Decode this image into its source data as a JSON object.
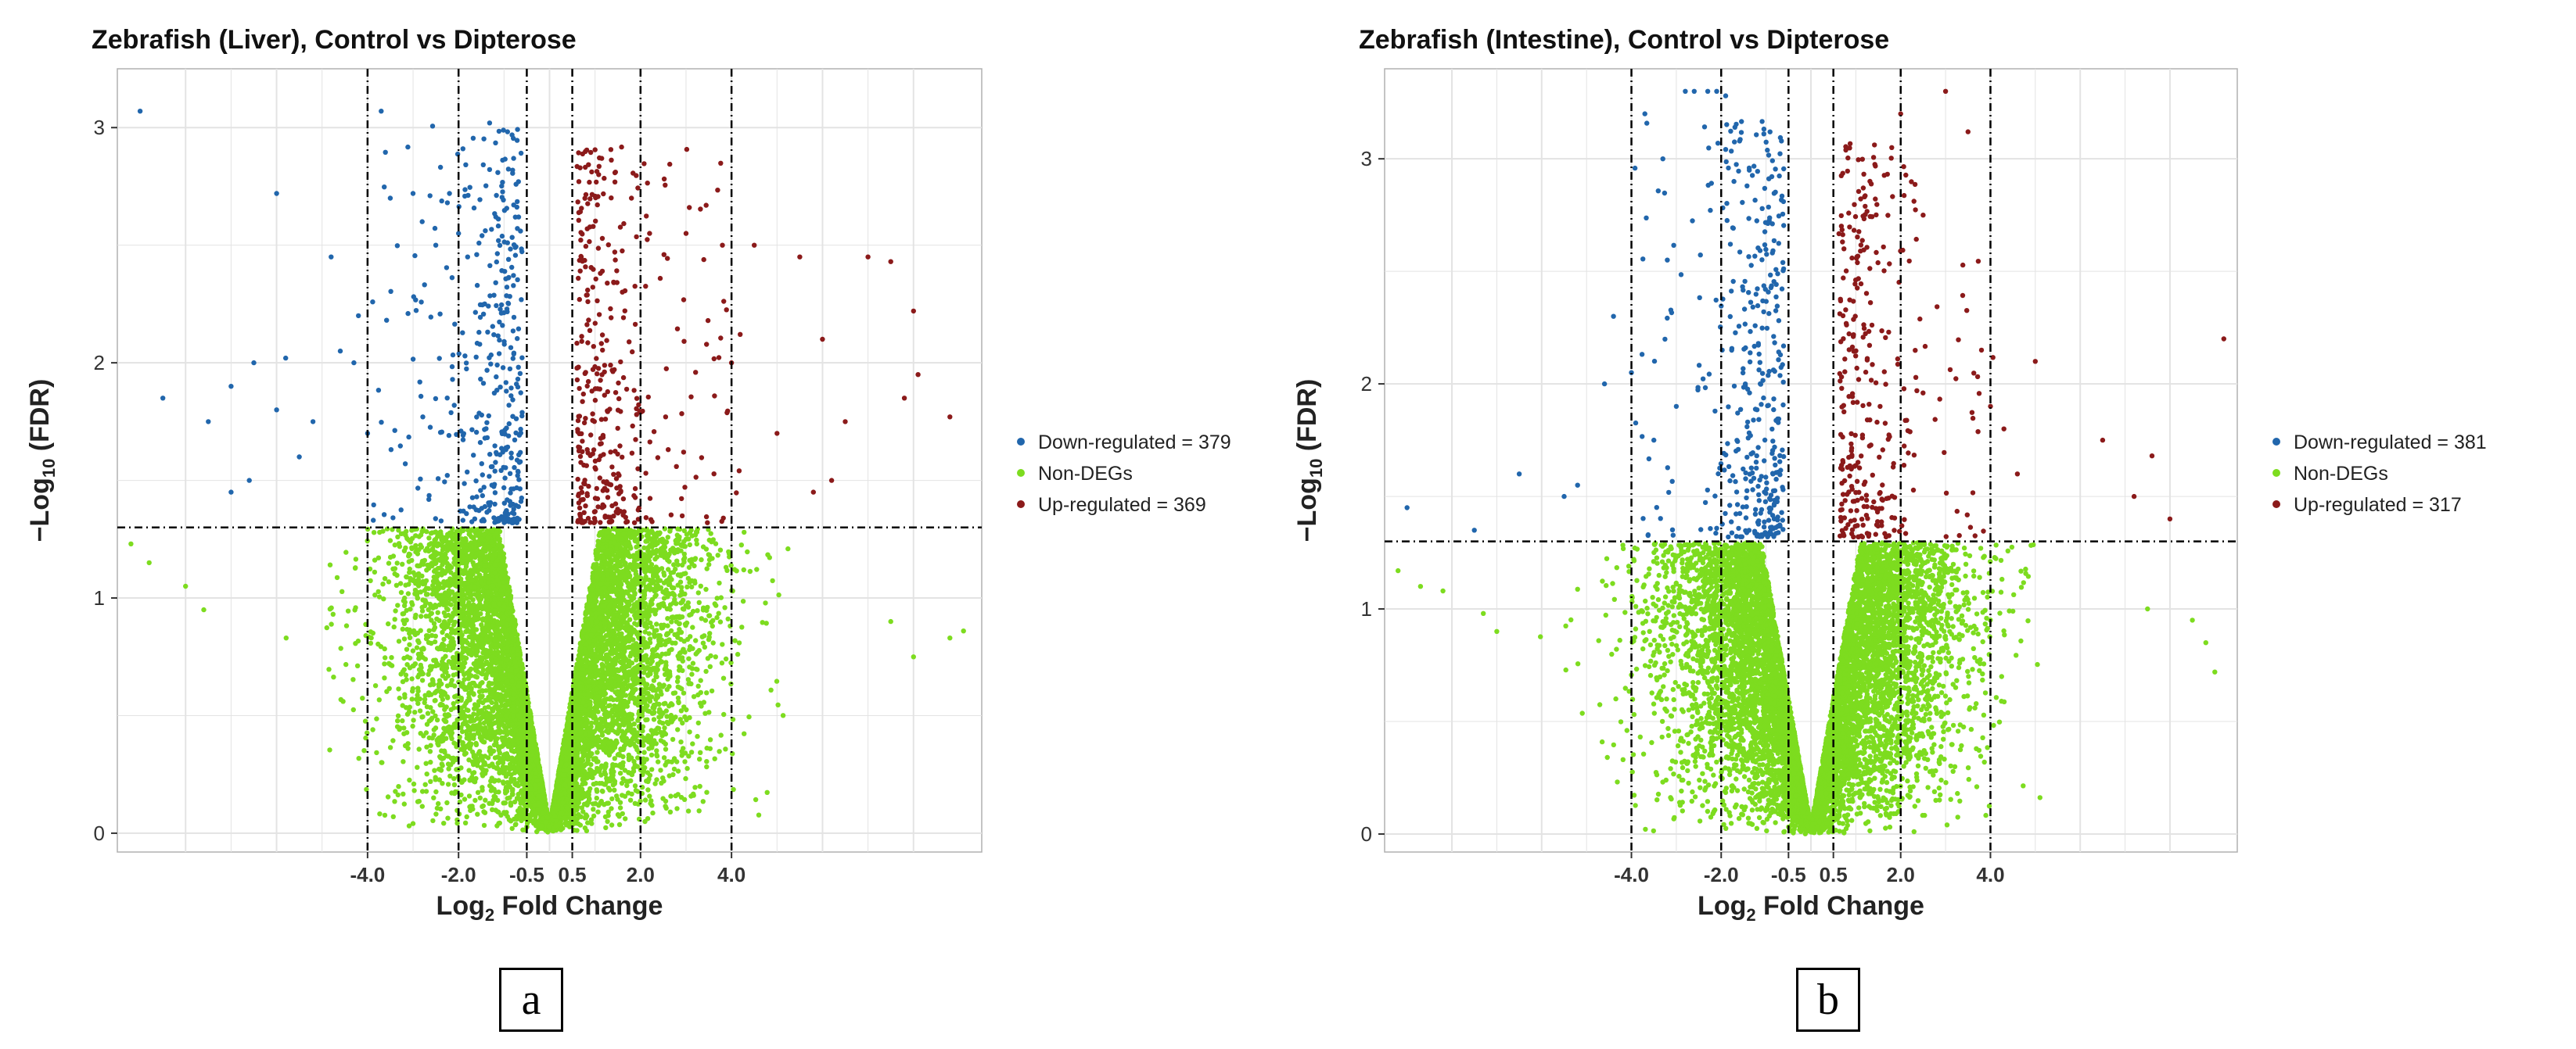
{
  "colors": {
    "down": "#2166ac",
    "non": "#7ddc1f",
    "up": "#8b1a1a",
    "grid": "#e3e3e3",
    "panel_border": "#b0b0b0"
  },
  "panels": [
    {
      "label": "a",
      "chart_data": {
        "type": "scatter",
        "title": "Zebrafish (Liver), Control vs Dipterose",
        "xlabel_main": "Log",
        "xlabel_sub": "2",
        "xlabel_tail": " Fold Change",
        "ylabel_pre": "−Log",
        "ylabel_sub": "10",
        "ylabel_tail": " (FDR)",
        "xlim": [
          -9.5,
          9.5
        ],
        "ylim": [
          -0.08,
          3.25
        ],
        "x_ticks": [
          -4,
          -2,
          -0.5,
          0.5,
          2,
          4
        ],
        "x_tick_labels": [
          "-4.0",
          "-2.0",
          "-0.5",
          "0.5",
          "2.0",
          "4.0"
        ],
        "y_ticks": [
          0,
          1,
          2,
          3
        ],
        "y_tick_labels": [
          "0",
          "1",
          "2",
          "3"
        ],
        "fdr_threshold": 1.3,
        "legend": [
          {
            "key": "down",
            "label": "Down-regulated = 379",
            "count": 379
          },
          {
            "key": "non",
            "label": "Non-DEGs"
          },
          {
            "key": "up",
            "label": "Up-regulated = 369",
            "count": 369
          }
        ],
        "series": [
          {
            "name": "Down-regulated",
            "points": [
              [
                -9.0,
                3.07
              ],
              [
                -8.5,
                1.85
              ],
              [
                -7.5,
                1.75
              ],
              [
                -7.0,
                1.9
              ],
              [
                -6.5,
                2.0
              ],
              [
                -6.0,
                1.8
              ],
              [
                -5.8,
                2.02
              ],
              [
                -5.5,
                1.6
              ],
              [
                -5.2,
                1.75
              ],
              [
                -4.8,
                2.45
              ],
              [
                -4.6,
                2.05
              ],
              [
                -4.3,
                2.0
              ],
              [
                -6.0,
                2.72
              ],
              [
                -3.7,
                3.07
              ],
              [
                -3.5,
                2.7
              ],
              [
                -3.0,
                2.72
              ],
              [
                -2.8,
                2.6
              ],
              [
                -2.5,
                2.5
              ],
              [
                -2.2,
                2.72
              ],
              [
                -2.0,
                2.55
              ],
              [
                -1.8,
                2.45
              ],
              [
                -1.6,
                2.46
              ],
              [
                -4.2,
                2.2
              ],
              [
                -4.0,
                1.7
              ],
              [
                -7.0,
                1.45
              ],
              [
                -6.6,
                1.5
              ]
            ]
          },
          {
            "name": "Non-DEGs",
            "points": [
              [
                -9.2,
                1.23
              ],
              [
                -8.8,
                1.15
              ],
              [
                -8.0,
                1.05
              ],
              [
                -7.6,
                0.95
              ],
              [
                8.8,
                0.83
              ],
              [
                9.1,
                0.86
              ],
              [
                7.5,
                0.9
              ],
              [
                8.0,
                0.75
              ]
            ]
          },
          {
            "name": "Up-regulated",
            "points": [
              [
                4.5,
                2.5
              ],
              [
                5.5,
                2.45
              ],
              [
                7.0,
                2.45
              ],
              [
                7.5,
                2.43
              ],
              [
                8.0,
                2.22
              ],
              [
                8.8,
                1.77
              ],
              [
                6.0,
                2.1
              ],
              [
                7.8,
                1.85
              ],
              [
                8.1,
                1.95
              ],
              [
                6.5,
                1.75
              ],
              [
                5.8,
                1.45
              ],
              [
                1.8,
                2.7
              ],
              [
                2.2,
                2.55
              ],
              [
                3.0,
                2.55
              ],
              [
                3.8,
                2.5
              ],
              [
                4.0,
                2.0
              ],
              [
                5.0,
                1.7
              ],
              [
                6.2,
                1.5
              ]
            ]
          }
        ],
        "generated_distribution": {
          "non_degs": 9000,
          "down_regulated": 379,
          "up_regulated": 369,
          "seed": 11
        }
      }
    },
    {
      "label": "b",
      "chart_data": {
        "type": "scatter",
        "title": "Zebrafish (Intestine), Control vs Dipterose",
        "xlabel_main": "Log",
        "xlabel_sub": "2",
        "xlabel_tail": " Fold Change",
        "ylabel_pre": "−Log",
        "ylabel_sub": "10",
        "ylabel_tail": " (FDR)",
        "xlim": [
          -9.5,
          9.5
        ],
        "ylim": [
          -0.08,
          3.4
        ],
        "x_ticks": [
          -4,
          -2,
          -0.5,
          0.5,
          2,
          4
        ],
        "x_tick_labels": [
          "-4.0",
          "-2.0",
          "-0.5",
          "0.5",
          "2.0",
          "4.0"
        ],
        "y_ticks": [
          0,
          1,
          2,
          3
        ],
        "y_tick_labels": [
          "0",
          "1",
          "2",
          "3"
        ],
        "fdr_threshold": 1.3,
        "legend": [
          {
            "key": "down",
            "label": "Down-regulated = 381",
            "count": 381
          },
          {
            "key": "non",
            "label": "Non-DEGs"
          },
          {
            "key": "up",
            "label": "Up-regulated = 317",
            "count": 317
          }
        ],
        "series": [
          {
            "name": "Down-regulated",
            "points": [
              [
                -9.0,
                1.45
              ],
              [
                -7.5,
                1.35
              ],
              [
                -6.5,
                1.6
              ],
              [
                -5.5,
                1.5
              ],
              [
                -5.2,
                1.55
              ],
              [
                -4.6,
                2.0
              ],
              [
                -4.4,
                2.3
              ],
              [
                -4.0,
                2.05
              ],
              [
                -3.7,
                3.2
              ],
              [
                -3.5,
                1.75
              ],
              [
                -3.2,
                2.55
              ],
              [
                -2.8,
                3.3
              ],
              [
                -2.6,
                3.3
              ],
              [
                -2.3,
                3.3
              ],
              [
                -2.1,
                3.3
              ],
              [
                -1.9,
                3.28
              ],
              [
                -3.0,
                1.9
              ],
              [
                -3.3,
                3.0
              ]
            ]
          },
          {
            "name": "Non-DEGs",
            "points": [
              [
                -9.2,
                1.17
              ],
              [
                -8.7,
                1.1
              ],
              [
                -8.2,
                1.08
              ],
              [
                -7.3,
                0.98
              ],
              [
                -7.0,
                0.9
              ],
              [
                8.8,
                0.85
              ],
              [
                9.0,
                0.72
              ],
              [
                8.5,
                0.95
              ],
              [
                7.5,
                1.0
              ]
            ]
          },
          {
            "name": "Up-regulated",
            "points": [
              [
                2.0,
                3.2
              ],
              [
                3.0,
                3.3
              ],
              [
                3.5,
                3.12
              ],
              [
                1.8,
                3.05
              ],
              [
                2.5,
                2.75
              ],
              [
                4.0,
                1.9
              ],
              [
                5.0,
                2.1
              ],
              [
                6.5,
                1.75
              ],
              [
                7.2,
                1.5
              ],
              [
                7.6,
                1.68
              ],
              [
                9.2,
                2.2
              ],
              [
                8.0,
                1.4
              ],
              [
                4.6,
                1.6
              ],
              [
                3.8,
                2.15
              ],
              [
                4.3,
                1.8
              ]
            ]
          }
        ],
        "generated_distribution": {
          "non_degs": 9000,
          "down_regulated": 381,
          "up_regulated": 317,
          "seed": 29
        }
      }
    }
  ]
}
